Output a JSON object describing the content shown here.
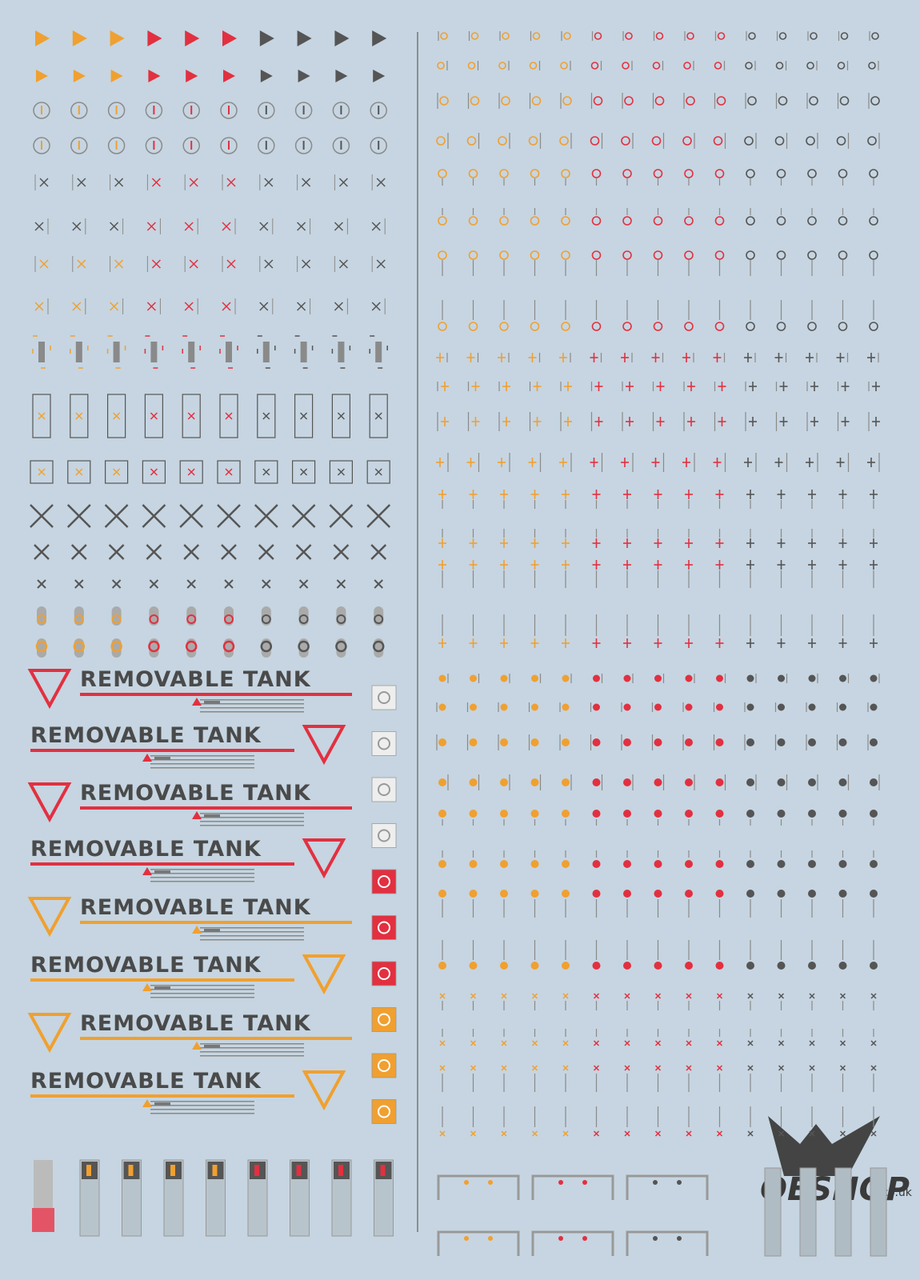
{
  "banners": [
    {
      "text": "REMOVABLE TANK"
    },
    {
      "text": "REMOVABLE TANK"
    },
    {
      "text": "REMOVABLE TANK"
    },
    {
      "text": "REMOVABLE TANK"
    },
    {
      "text": "REMOVABLE TANK"
    },
    {
      "text": "REMOVABLE TANK"
    },
    {
      "text": "REMOVABLE TANK"
    },
    {
      "text": "REMOVABLE TANK"
    }
  ],
  "logo": {
    "name": "OESHOP",
    "domain": ".co.uk"
  }
}
